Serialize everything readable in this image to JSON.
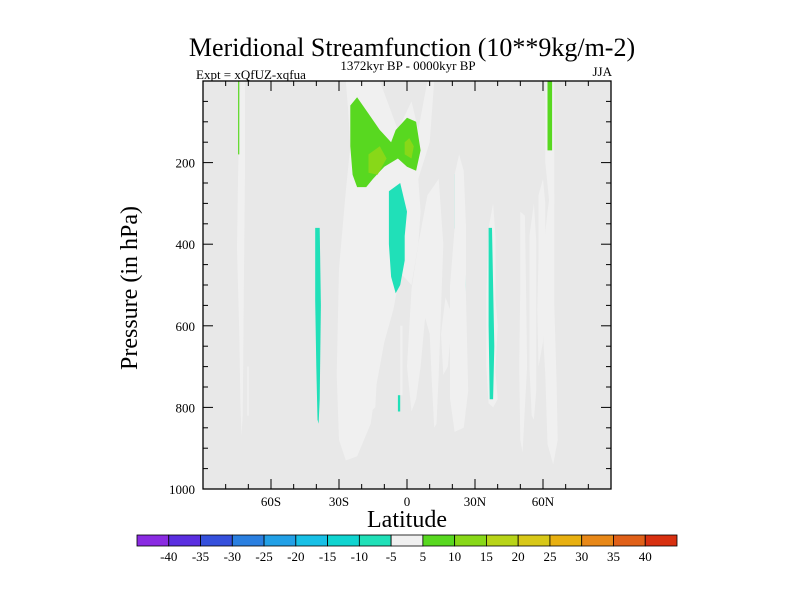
{
  "chart_data": {
    "type": "contour",
    "title": "Meridional Streamfunction (10**9kg/m-2)",
    "subtitle_left": "Expt = xQfUZ-xqfua",
    "subtitle_center": "1372kyr BP - 0000kyr BP",
    "subtitle_right": "JJA",
    "xlabel": "Latitude",
    "ylabel": "Pressure (in hPa)",
    "xlim": [
      -90,
      90
    ],
    "ylim": [
      0,
      1000
    ],
    "y_inverted": true,
    "xticks": [
      {
        "value": -60,
        "label": "60S"
      },
      {
        "value": -30,
        "label": "30S"
      },
      {
        "value": 0,
        "label": "0"
      },
      {
        "value": 30,
        "label": "30N"
      },
      {
        "value": 60,
        "label": "60N"
      }
    ],
    "yticks": [
      {
        "value": 200,
        "label": "200"
      },
      {
        "value": 400,
        "label": "400"
      },
      {
        "value": 600,
        "label": "600"
      },
      {
        "value": 800,
        "label": "800"
      },
      {
        "value": 1000,
        "label": "1000"
      }
    ],
    "background_color": "#e8e8e8",
    "colorbar": {
      "levels": [
        "-40",
        "-35",
        "-30",
        "-25",
        "-20",
        "-15",
        "-10",
        "-5",
        "5",
        "10",
        "15",
        "20",
        "25",
        "30",
        "35",
        "40"
      ],
      "colors": [
        "#8a2be2",
        "#5a2ee0",
        "#3550dc",
        "#2a7fe0",
        "#22a0e6",
        "#18c0e6",
        "#10d4d0",
        "#20e0b8",
        "#f0f0f0",
        "#58d820",
        "#88d818",
        "#b8d418",
        "#d8c818",
        "#e8b010",
        "#e88818",
        "#e06018",
        "#d83010"
      ]
    },
    "regions": [
      {
        "value": 5,
        "points": [
          [
            -75,
            410
          ],
          [
            -74.5,
            230
          ],
          [
            -74,
            100
          ],
          [
            -73.5,
            0
          ],
          [
            -71.5,
            0
          ],
          [
            -71.5,
            240
          ],
          [
            -72,
            520
          ],
          [
            -72.3,
            720
          ],
          [
            -72.5,
            820
          ],
          [
            -73,
            870
          ],
          [
            -73.5,
            790
          ],
          [
            -74,
            620
          ]
        ]
      },
      {
        "value": 5,
        "points": [
          [
            -70.5,
            700
          ],
          [
            -69.8,
            700
          ],
          [
            -69.8,
            820
          ],
          [
            -70.5,
            820
          ]
        ]
      },
      {
        "value": 10,
        "points": [
          [
            -74.5,
            0
          ],
          [
            -74,
            0
          ],
          [
            -74,
            180
          ],
          [
            -74.5,
            180
          ]
        ]
      },
      {
        "value": -5,
        "points": [
          [
            -40.5,
            360
          ],
          [
            -38.5,
            360
          ],
          [
            -38,
            550
          ],
          [
            -38.5,
            780
          ],
          [
            -39,
            840
          ],
          [
            -39.5,
            830
          ],
          [
            -40,
            700
          ],
          [
            -40.5,
            540
          ]
        ]
      },
      {
        "value": 5,
        "points": [
          [
            -27,
            0
          ],
          [
            -12,
            0
          ],
          [
            -4,
            120
          ],
          [
            2,
            50
          ],
          [
            5,
            120
          ],
          [
            9,
            0
          ],
          [
            12,
            0
          ],
          [
            10,
            150
          ],
          [
            5,
            240
          ],
          [
            6,
            320
          ],
          [
            5,
            400
          ],
          [
            2,
            500
          ],
          [
            -3,
            470
          ],
          [
            -6,
            560
          ],
          [
            -10,
            640
          ],
          [
            -14,
            760
          ],
          [
            -16,
            840
          ],
          [
            -22,
            920
          ],
          [
            -27,
            930
          ],
          [
            -30,
            880
          ],
          [
            -31,
            720
          ],
          [
            -30,
            460
          ],
          [
            -27,
            270
          ],
          [
            -25,
            160
          ],
          [
            -26,
            70
          ]
        ]
      },
      {
        "value": 10,
        "points": [
          [
            -25,
            60
          ],
          [
            -22,
            40
          ],
          [
            -17,
            80
          ],
          [
            -12,
            120
          ],
          [
            -7,
            150
          ],
          [
            -5,
            120
          ],
          [
            0,
            90
          ],
          [
            4,
            100
          ],
          [
            6,
            170
          ],
          [
            4,
            220
          ],
          [
            0,
            210
          ],
          [
            -4,
            190
          ],
          [
            -10,
            210
          ],
          [
            -15,
            240
          ],
          [
            -18,
            260
          ],
          [
            -22,
            260
          ],
          [
            -24,
            230
          ],
          [
            -25,
            160
          ]
        ]
      },
      {
        "value": 15,
        "points": [
          [
            -17,
            180
          ],
          [
            -12,
            160
          ],
          [
            -9,
            190
          ],
          [
            -13,
            230
          ],
          [
            -17,
            225
          ]
        ]
      },
      {
        "value": 15,
        "points": [
          [
            -1,
            150
          ],
          [
            1,
            140
          ],
          [
            3,
            160
          ],
          [
            2,
            190
          ],
          [
            -1,
            180
          ]
        ]
      },
      {
        "value": -5,
        "points": [
          [
            -8,
            270
          ],
          [
            -3,
            250
          ],
          [
            0,
            320
          ],
          [
            -1,
            380
          ],
          [
            -1,
            440
          ],
          [
            -3,
            500
          ],
          [
            -5,
            520
          ],
          [
            -7,
            480
          ],
          [
            -8,
            400
          ]
        ]
      },
      {
        "value": 5,
        "points": [
          [
            -18,
            490
          ],
          [
            -16,
            480
          ],
          [
            -14,
            530
          ],
          [
            -13,
            620
          ],
          [
            -13,
            700
          ],
          [
            -14,
            800
          ],
          [
            -16,
            810
          ],
          [
            -17,
            720
          ],
          [
            -18,
            600
          ]
        ]
      },
      {
        "value": 5,
        "points": [
          [
            -3,
            600
          ],
          [
            -2,
            600
          ],
          [
            -2,
            770
          ],
          [
            -3,
            770
          ]
        ]
      },
      {
        "value": -5,
        "points": [
          [
            -4,
            770
          ],
          [
            -3,
            770
          ],
          [
            -3,
            810
          ],
          [
            -4,
            810
          ]
        ]
      },
      {
        "value": 5,
        "points": [
          [
            0,
            700
          ],
          [
            2,
            510
          ],
          [
            5,
            400
          ],
          [
            9,
            280
          ],
          [
            14,
            240
          ],
          [
            16,
            400
          ],
          [
            15,
            560
          ],
          [
            14,
            720
          ],
          [
            13,
            840
          ],
          [
            12,
            850
          ],
          [
            11,
            740
          ],
          [
            10,
            620
          ],
          [
            8,
            580
          ],
          [
            6,
            700
          ],
          [
            4,
            780
          ],
          [
            2,
            810
          ]
        ]
      },
      {
        "value": 5,
        "points": [
          [
            15,
            620
          ],
          [
            17,
            530
          ],
          [
            19,
            560
          ],
          [
            19,
            640
          ],
          [
            18,
            700
          ],
          [
            16,
            720
          ]
        ]
      },
      {
        "value": -5,
        "points": [
          [
            21,
            230
          ],
          [
            23,
            210
          ],
          [
            25,
            240
          ],
          [
            25,
            360
          ],
          [
            26,
            500
          ],
          [
            25,
            600
          ],
          [
            26,
            760
          ],
          [
            25,
            820
          ],
          [
            23,
            840
          ],
          [
            21,
            820
          ],
          [
            20,
            700
          ],
          [
            21,
            500
          ],
          [
            21,
            360
          ]
        ]
      },
      {
        "value": 5,
        "points": [
          [
            19,
            500
          ],
          [
            21,
            360
          ],
          [
            21,
            230
          ],
          [
            23,
            180
          ],
          [
            25,
            220
          ],
          [
            26,
            350
          ],
          [
            26,
            520
          ],
          [
            27,
            760
          ],
          [
            25,
            850
          ],
          [
            21,
            860
          ],
          [
            19,
            780
          ],
          [
            19,
            640
          ]
        ]
      },
      {
        "value": 5,
        "points": [
          [
            35,
            520
          ],
          [
            36,
            360
          ],
          [
            38,
            300
          ],
          [
            39,
            380
          ],
          [
            39,
            530
          ],
          [
            40,
            600
          ],
          [
            39,
            710
          ],
          [
            40,
            780
          ],
          [
            38,
            800
          ],
          [
            36,
            790
          ],
          [
            35,
            700
          ]
        ]
      },
      {
        "value": -5,
        "points": [
          [
            36,
            360
          ],
          [
            37.5,
            360
          ],
          [
            38,
            500
          ],
          [
            38.5,
            650
          ],
          [
            38,
            780
          ],
          [
            36.5,
            780
          ],
          [
            36,
            600
          ]
        ]
      },
      {
        "value": 5,
        "points": [
          [
            50,
            320
          ],
          [
            52,
            330
          ],
          [
            52.5,
            500
          ],
          [
            53,
            700
          ],
          [
            52,
            800
          ],
          [
            51,
            910
          ],
          [
            50,
            880
          ],
          [
            49.5,
            700
          ],
          [
            50,
            500
          ]
        ]
      },
      {
        "value": 5,
        "points": [
          [
            54,
            380
          ],
          [
            56,
            300
          ],
          [
            57,
            390
          ],
          [
            57,
            560
          ],
          [
            57,
            760
          ],
          [
            56,
            830
          ],
          [
            55,
            820
          ],
          [
            54,
            700
          ],
          [
            54,
            520
          ]
        ]
      },
      {
        "value": 5,
        "points": [
          [
            58,
            280
          ],
          [
            60,
            240
          ],
          [
            61,
            300
          ],
          [
            61,
            460
          ],
          [
            60,
            640
          ],
          [
            58,
            700
          ],
          [
            57.5,
            560
          ],
          [
            58,
            430
          ]
        ]
      },
      {
        "value": 5,
        "points": [
          [
            59,
            480
          ],
          [
            62,
            320
          ],
          [
            63,
            280
          ],
          [
            64,
            220
          ],
          [
            65,
            280
          ],
          [
            65,
            550
          ],
          [
            66,
            740
          ],
          [
            66.5,
            880
          ],
          [
            64.5,
            940
          ],
          [
            62,
            890
          ],
          [
            61,
            720
          ],
          [
            60,
            620
          ]
        ]
      },
      {
        "value": 5,
        "points": [
          [
            61,
            0
          ],
          [
            65,
            0
          ],
          [
            65,
            300
          ],
          [
            63,
            310
          ],
          [
            61,
            200
          ]
        ]
      },
      {
        "value": 10,
        "points": [
          [
            62,
            0
          ],
          [
            64,
            0
          ],
          [
            64,
            170
          ],
          [
            62,
            170
          ]
        ]
      }
    ]
  }
}
